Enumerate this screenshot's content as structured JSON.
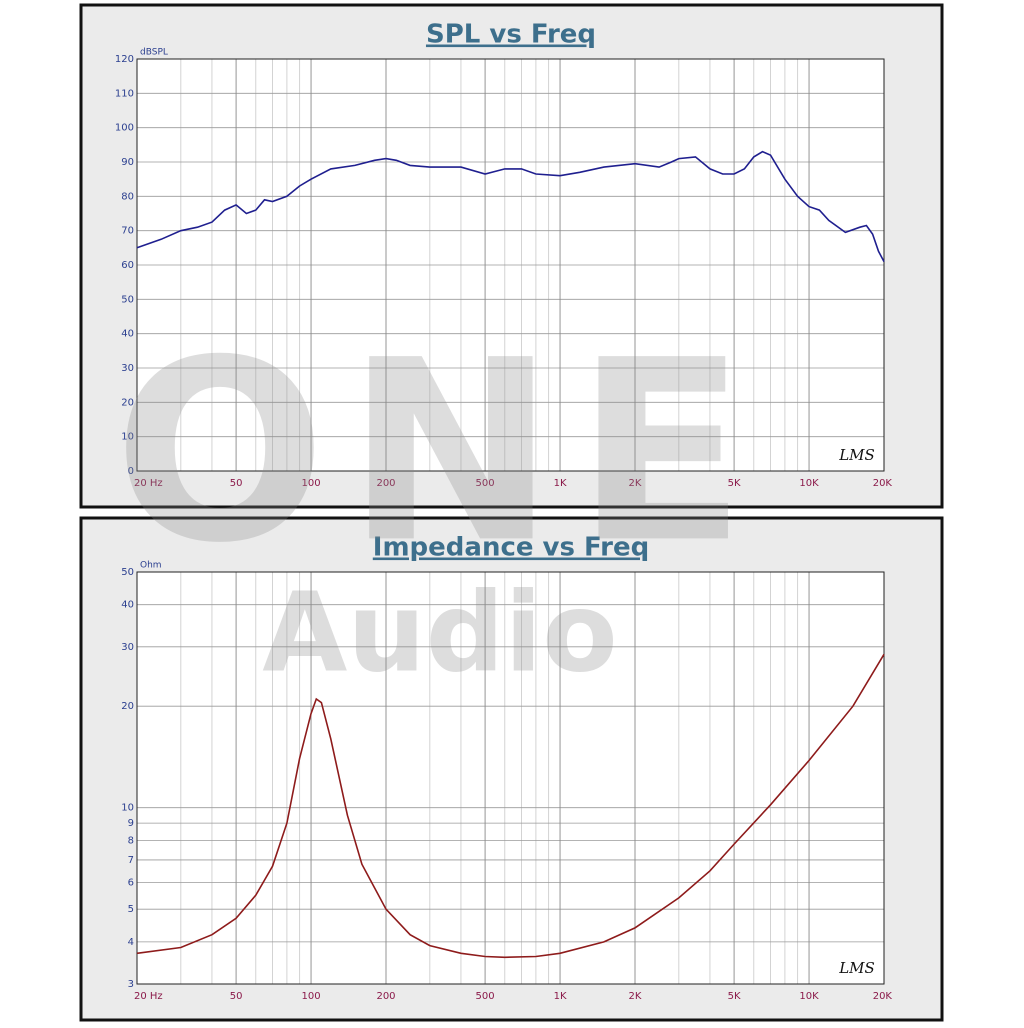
{
  "chart_data": [
    {
      "type": "line",
      "title": "SPL vs Freq",
      "ylabel": "dBSPL",
      "logo": "LMS",
      "color": "#1f1f8f",
      "xscale": "log",
      "yscale": "linear",
      "grid": true,
      "xlim": [
        20,
        20000
      ],
      "ylim": [
        0,
        120
      ],
      "xticks": [
        {
          "value": 20,
          "label": "20 Hz"
        },
        50,
        100,
        200,
        500,
        {
          "value": 1000,
          "label": "1K"
        },
        {
          "value": 2000,
          "label": "2K"
        },
        {
          "value": 5000,
          "label": "5K"
        },
        {
          "value": 10000,
          "label": "10K"
        },
        {
          "value": 20000,
          "label": "20K"
        }
      ],
      "xminor_ticks": [
        30,
        40,
        60,
        70,
        80,
        90,
        300,
        400,
        600,
        700,
        800,
        900,
        3000,
        4000,
        6000,
        7000,
        8000,
        9000
      ],
      "yticks": [
        0,
        10,
        20,
        30,
        40,
        50,
        60,
        70,
        80,
        90,
        100,
        110,
        120
      ],
      "x": [
        20,
        25,
        30,
        35,
        40,
        45,
        50,
        55,
        60,
        65,
        70,
        80,
        90,
        100,
        120,
        150,
        180,
        200,
        220,
        250,
        300,
        400,
        500,
        600,
        700,
        800,
        1000,
        1200,
        1500,
        2000,
        2500,
        2800,
        3000,
        3500,
        4000,
        4500,
        5000,
        5500,
        6000,
        6500,
        7000,
        8000,
        9000,
        10000,
        11000,
        12000,
        14000,
        16000,
        17000,
        18000,
        19000,
        20000
      ],
      "values": [
        65,
        67.5,
        70,
        71,
        72.5,
        76,
        77.5,
        75,
        76,
        79,
        78.5,
        80,
        83,
        85,
        88,
        89,
        90.5,
        91,
        90.5,
        89,
        88.5,
        88.5,
        86.5,
        88,
        88,
        86.5,
        86,
        87,
        88.5,
        89.5,
        88.5,
        90,
        91,
        91.5,
        88,
        86.5,
        86.5,
        88,
        91.5,
        93,
        92,
        85,
        80,
        77,
        76,
        73,
        69.5,
        71,
        71.5,
        69,
        64,
        61
      ]
    },
    {
      "type": "line",
      "title": "Impedance vs Freq",
      "ylabel": "Ohm",
      "logo": "LMS",
      "color": "#8e1b1b",
      "xscale": "log",
      "yscale": "log",
      "grid": true,
      "xlim": [
        20,
        20000
      ],
      "ylim": [
        3,
        50
      ],
      "xticks": [
        {
          "value": 20,
          "label": "20 Hz"
        },
        50,
        100,
        200,
        500,
        {
          "value": 1000,
          "label": "1K"
        },
        {
          "value": 2000,
          "label": "2K"
        },
        {
          "value": 5000,
          "label": "5K"
        },
        {
          "value": 10000,
          "label": "10K"
        },
        {
          "value": 20000,
          "label": "20K"
        }
      ],
      "xminor_ticks": [
        30,
        40,
        60,
        70,
        80,
        90,
        300,
        400,
        600,
        700,
        800,
        900,
        3000,
        4000,
        6000,
        7000,
        8000,
        9000
      ],
      "yticks": [
        3,
        4,
        5,
        6,
        7,
        8,
        9,
        10,
        20,
        30,
        40,
        50
      ],
      "x": [
        20,
        30,
        40,
        50,
        60,
        70,
        80,
        90,
        100,
        105,
        110,
        120,
        140,
        160,
        200,
        250,
        300,
        400,
        500,
        600,
        800,
        1000,
        1500,
        2000,
        3000,
        4000,
        5000,
        7000,
        10000,
        15000,
        20000
      ],
      "values": [
        3.7,
        3.85,
        4.2,
        4.7,
        5.5,
        6.7,
        9,
        14,
        19,
        21,
        20.5,
        16,
        9.5,
        6.8,
        5,
        4.2,
        3.9,
        3.7,
        3.62,
        3.6,
        3.62,
        3.7,
        4,
        4.4,
        5.4,
        6.5,
        7.8,
        10.2,
        13.8,
        20,
        28.5
      ]
    }
  ],
  "watermark": {
    "brand": "ONE",
    "subtitle": "Audio"
  }
}
